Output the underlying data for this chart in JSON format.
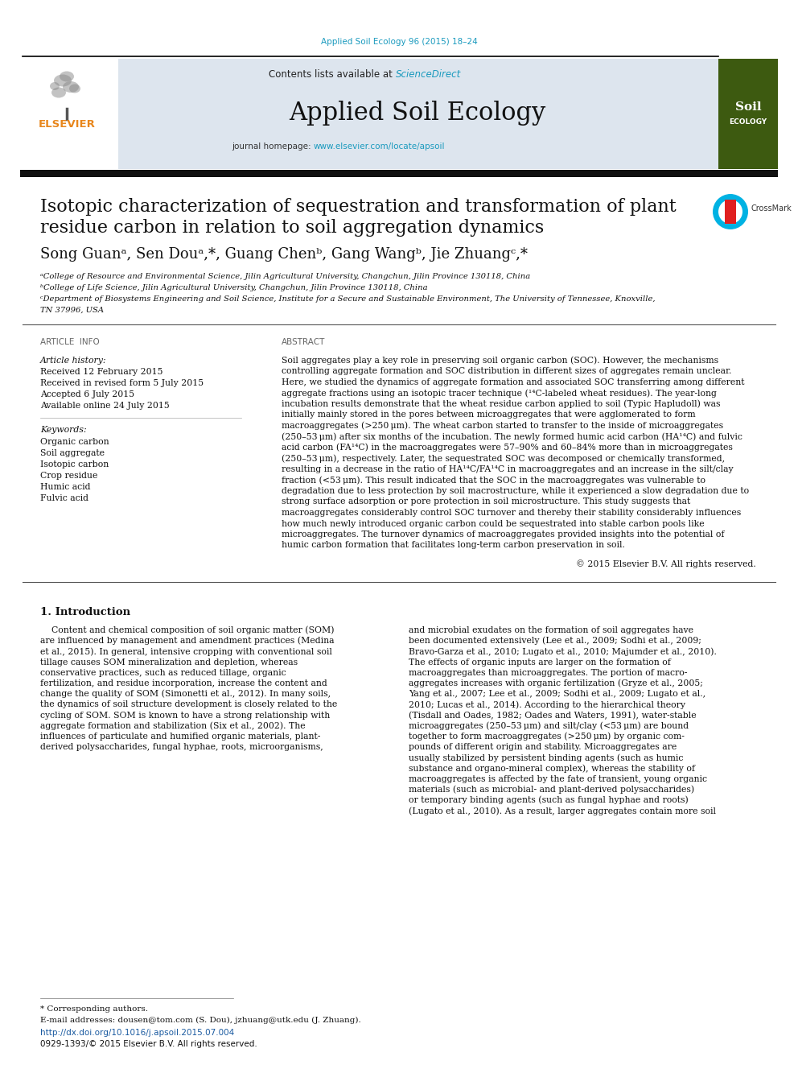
{
  "journal_ref": "Applied Soil Ecology 96 (2015) 18–24",
  "journal_ref_color": "#1a9abe",
  "sciencedirect_label": "Contents lists available at ",
  "sciencedirect": "ScienceDirect",
  "sciencedirect_color": "#1a9abe",
  "journal_name": "Applied Soil Ecology",
  "journal_homepage_label": "journal homepage: ",
  "journal_url": "www.elsevier.com/locate/apsoil",
  "journal_url_color": "#1a9abe",
  "header_bg": "#dde5ee",
  "title_line1": "Isotopic characterization of sequestration and transformation of plant",
  "title_line2": "residue carbon in relation to soil aggregation dynamics",
  "authors_line": "Song Guanᵃ, Sen Douᵃ,*, Guang Chenᵇ, Gang Wangᵇ, Jie Zhuangᶜ,*",
  "affil_a": "ᵃCollege of Resource and Environmental Science, Jilin Agricultural University, Changchun, Jilin Province 130118, China",
  "affil_b": "ᵇCollege of Life Science, Jilin Agricultural University, Changchun, Jilin Province 130118, China",
  "affil_c1": "ᶜDepartment of Biosystems Engineering and Soil Science, Institute for a Secure and Sustainable Environment, The University of Tennessee, Knoxville,",
  "affil_c2": "TN 37996, USA",
  "article_history_label": "Article history:",
  "received1": "Received 12 February 2015",
  "received2": "Received in revised form 5 July 2015",
  "accepted": "Accepted 6 July 2015",
  "available": "Available online 24 July 2015",
  "keywords_label": "Keywords:",
  "keywords": [
    "Organic carbon",
    "Soil aggregate",
    "Isotopic carbon",
    "Crop residue",
    "Humic acid",
    "Fulvic acid"
  ],
  "abstract_lines": [
    "Soil aggregates play a key role in preserving soil organic carbon (SOC). However, the mechanisms",
    "controlling aggregate formation and SOC distribution in different sizes of aggregates remain unclear.",
    "Here, we studied the dynamics of aggregate formation and associated SOC transferring among different",
    "aggregate fractions using an isotopic tracer technique (¹⁴C-labeled wheat residues). The year-long",
    "incubation results demonstrate that the wheat residue carbon applied to soil (Typic Hapludoll) was",
    "initially mainly stored in the pores between microaggregates that were agglomerated to form",
    "macroaggregates (>250 μm). The wheat carbon started to transfer to the inside of microaggregates",
    "(250–53 μm) after six months of the incubation. The newly formed humic acid carbon (HA¹⁴C) and fulvic",
    "acid carbon (FA¹⁴C) in the macroaggregates were 57–90% and 60–84% more than in microaggregates",
    "(250–53 μm), respectively. Later, the sequestrated SOC was decomposed or chemically transformed,",
    "resulting in a decrease in the ratio of HA¹⁴C/FA¹⁴C in macroaggregates and an increase in the silt/clay",
    "fraction (<53 μm). This result indicated that the SOC in the macroaggregates was vulnerable to",
    "degradation due to less protection by soil macrostructure, while it experienced a slow degradation due to",
    "strong surface adsorption or pore protection in soil microstructure. This study suggests that",
    "macroaggregates considerably control SOC turnover and thereby their stability considerably influences",
    "how much newly introduced organic carbon could be sequestrated into stable carbon pools like",
    "microaggregates. The turnover dynamics of macroaggregates provided insights into the potential of",
    "humic carbon formation that facilitates long-term carbon preservation in soil."
  ],
  "copyright": "© 2015 Elsevier B.V. All rights reserved.",
  "intro_heading": "1. Introduction",
  "intro_col1_lines": [
    "    Content and chemical composition of soil organic matter (SOM)",
    "are influenced by management and amendment practices (Medina",
    "et al., 2015). In general, intensive cropping with conventional soil",
    "tillage causes SOM mineralization and depletion, whereas",
    "conservative practices, such as reduced tillage, organic",
    "fertilization, and residue incorporation, increase the content and",
    "change the quality of SOM (Simonetti et al., 2012). In many soils,",
    "the dynamics of soil structure development is closely related to the",
    "cycling of SOM. SOM is known to have a strong relationship with",
    "aggregate formation and stabilization (Six et al., 2002). The",
    "influences of particulate and humified organic materials, plant-",
    "derived polysaccharides, fungal hyphae, roots, microorganisms,"
  ],
  "intro_col2_lines": [
    "and microbial exudates on the formation of soil aggregates have",
    "been documented extensively (Lee et al., 2009; Sodhi et al., 2009;",
    "Bravo-Garza et al., 2010; Lugato et al., 2010; Majumder et al., 2010).",
    "The effects of organic inputs are larger on the formation of",
    "macroaggregates than microaggregates. The portion of macro-",
    "aggregates increases with organic fertilization (Gryze et al., 2005;",
    "Yang et al., 2007; Lee et al., 2009; Sodhi et al., 2009; Lugato et al.,",
    "2010; Lucas et al., 2014). According to the hierarchical theory",
    "(Tisdall and Oades, 1982; Oades and Waters, 1991), water-stable",
    "microaggregates (250–53 μm) and silt/clay (<53 μm) are bound",
    "together to form macroaggregates (>250 μm) by organic com-",
    "pounds of different origin and stability. Microaggregates are",
    "usually stabilized by persistent binding agents (such as humic",
    "substance and organo-mineral complex), whereas the stability of",
    "macroaggregates is affected by the fate of transient, young organic",
    "materials (such as microbial- and plant-derived polysaccharides)",
    "or temporary binding agents (such as fungal hyphae and roots)",
    "(Lugato et al., 2010). As a result, larger aggregates contain more soil"
  ],
  "footnote_star": "* Corresponding authors.",
  "footnote_email": "E-mail addresses: dousen@tom.com (S. Dou), jzhuang@utk.edu (J. Zhuang).",
  "footnote_doi": "http://dx.doi.org/10.1016/j.apsoil.2015.07.004",
  "footnote_issn": "0929-1393/© 2015 Elsevier B.V. All rights reserved.",
  "doi_color": "#1a5aa0",
  "bg_color": "#ffffff",
  "text_black": "#111111",
  "link_color": "#1a5aa0"
}
